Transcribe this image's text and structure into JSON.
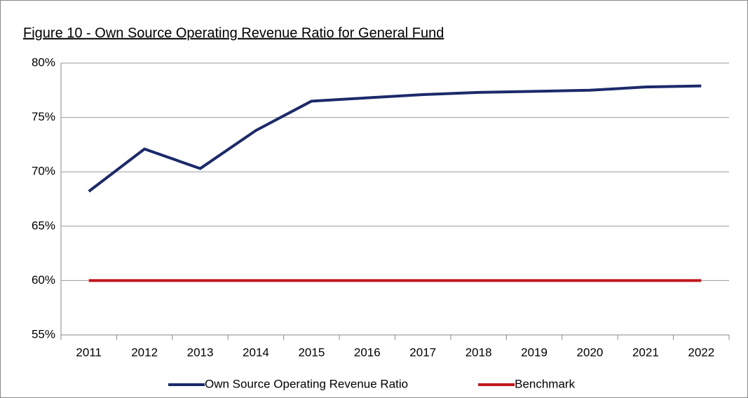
{
  "chart_data": {
    "type": "line",
    "title": "Figure 10 - Own Source Operating  Revenue Ratio for General Fund",
    "categories": [
      "2011",
      "2012",
      "2013",
      "2014",
      "2015",
      "2016",
      "2017",
      "2018",
      "2019",
      "2020",
      "2021",
      "2022"
    ],
    "series": [
      {
        "name": "Own Source Operating Revenue Ratio",
        "color": "#1b2a6b",
        "values": [
          68.2,
          72.1,
          70.3,
          73.8,
          76.5,
          76.8,
          77.1,
          77.3,
          77.4,
          77.5,
          77.8,
          77.9
        ]
      },
      {
        "name": "Benchmark",
        "color": "#c0161e",
        "values": [
          60,
          60,
          60,
          60,
          60,
          60,
          60,
          60,
          60,
          60,
          60,
          60
        ]
      }
    ],
    "ylim": [
      55,
      80
    ],
    "yticks": [
      {
        "value": 55,
        "label": "55%"
      },
      {
        "value": 60,
        "label": "60%"
      },
      {
        "value": 65,
        "label": "65%"
      },
      {
        "value": 70,
        "label": "70%"
      },
      {
        "value": 75,
        "label": "75%"
      },
      {
        "value": 80,
        "label": "80%"
      }
    ],
    "grid": true,
    "legend": "bottom"
  }
}
